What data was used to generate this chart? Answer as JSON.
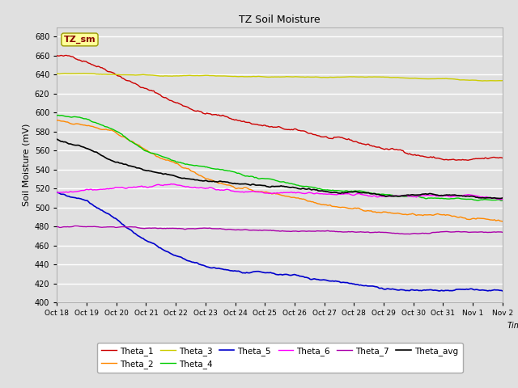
{
  "title": "TZ Soil Moisture",
  "xlabel": "Time",
  "ylabel": "Soil Moisture (mV)",
  "legend_label": "TZ_sm",
  "x_tick_labels": [
    "Oct 18",
    "Oct 19",
    "Oct 20",
    "Oct 21",
    "Oct 22",
    "Oct 23",
    "Oct 24",
    "Oct 25",
    "Oct 26",
    "Oct 27",
    "Oct 28",
    "Oct 29",
    "Oct 30",
    "Oct 31",
    "Nov 1",
    "Nov 2"
  ],
  "ylim": [
    400,
    690
  ],
  "yticks": [
    400,
    420,
    440,
    460,
    480,
    500,
    520,
    540,
    560,
    580,
    600,
    620,
    640,
    660,
    680
  ],
  "series_colors": {
    "Theta_1": "#cc0000",
    "Theta_2": "#ff8800",
    "Theta_3": "#cccc00",
    "Theta_4": "#00cc00",
    "Theta_5": "#0000cc",
    "Theta_6": "#ff00ff",
    "Theta_7": "#aa00aa",
    "Theta_avg": "#000000"
  },
  "background_color": "#e0e0e0",
  "plot_bg_color": "#e0e0e0",
  "grid_color": "#ffffff",
  "n_points": 337,
  "annotation_box_color": "#ffff99",
  "annotation_text_color": "#880000"
}
